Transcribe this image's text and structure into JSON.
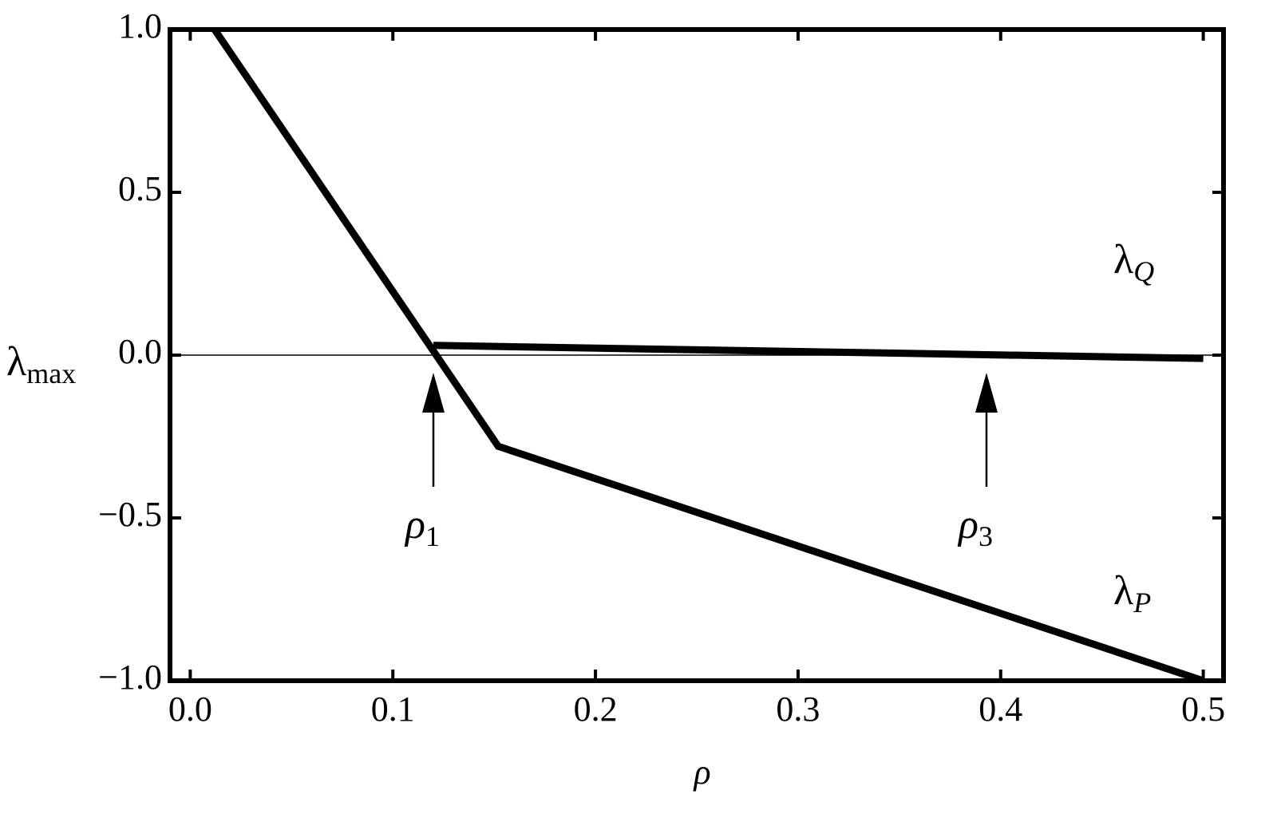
{
  "chart_data": {
    "type": "line",
    "xlabel": "ρ",
    "ylabel": {
      "main": "λ",
      "sub": "max"
    },
    "xlim": [
      -0.01,
      0.51
    ],
    "ylim": [
      -1,
      1
    ],
    "xticks": [
      {
        "value": 0,
        "label": "0.0"
      },
      0.1,
      0.2,
      0.3,
      0.4,
      0.5
    ],
    "yticks": [
      {
        "value": -1,
        "label": "−1.0"
      },
      {
        "value": -0.5,
        "label": "−0.5"
      },
      {
        "value": 0,
        "label": "0.0"
      },
      0.5,
      {
        "value": 1,
        "label": "1.0"
      }
    ],
    "zero_line": true,
    "series": [
      {
        "label": {
          "main": "λ",
          "sub": "Q"
        },
        "color": "#000000",
        "x": [
          0.12,
          0.5
        ],
        "values": [
          0.03,
          -0.01
        ]
      },
      {
        "label": {
          "main": "λ",
          "sub": "P"
        },
        "color": "#000000",
        "x": [
          0.012,
          0.152,
          0.5
        ],
        "values": [
          1.0,
          -0.28,
          -1.0
        ]
      }
    ],
    "annotations": [
      {
        "main": "ρ",
        "sub": "1",
        "x": 0.12
      },
      {
        "main": "ρ",
        "sub": "3",
        "x": 0.393
      }
    ]
  }
}
